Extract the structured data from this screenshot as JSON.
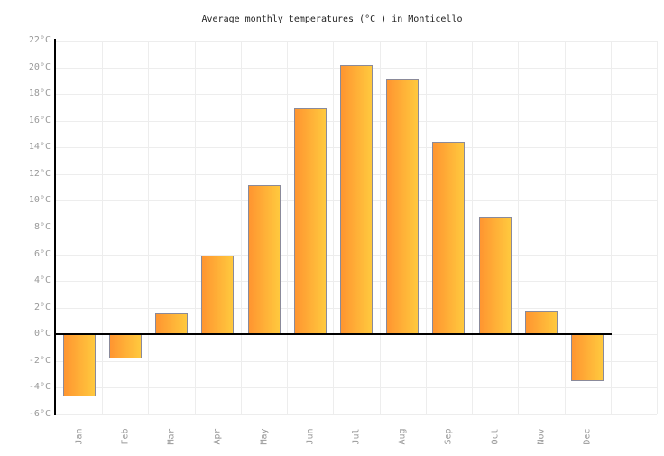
{
  "chart_data": {
    "type": "bar",
    "title": "Average monthly temperatures (°C ) in Monticello",
    "categories": [
      "Jan",
      "Feb",
      "Mar",
      "Apr",
      "May",
      "Jun",
      "Jul",
      "Aug",
      "Sep",
      "Oct",
      "Nov",
      "Dec"
    ],
    "values": [
      -4.7,
      -1.8,
      1.6,
      5.9,
      11.2,
      16.9,
      20.2,
      19.1,
      14.4,
      8.8,
      1.8,
      -3.5
    ],
    "unit": "°C",
    "xlabel": "",
    "ylabel": "",
    "ylim": [
      -6,
      22
    ],
    "ytick_step": 2,
    "ytick_labels": [
      "22°C",
      "20°C",
      "18°C",
      "16°C",
      "14°C",
      "12°C",
      "10°C",
      "8°C",
      "6°C",
      "4°C",
      "2°C",
      "0°C",
      "-2°C",
      "-4°C",
      "-6°C"
    ],
    "grid": "on",
    "legend": "none",
    "extra_right_columns": 1
  },
  "colors": {
    "background": "#ffffff",
    "bar_gradient_left": "#ff9530",
    "bar_gradient_right": "#ffc93e",
    "bar_border": "#8a8a9a",
    "gridline": "#ededed",
    "axis_line": "#000000",
    "zero_line": "#000000",
    "tick_label": "#999999",
    "title_text": "#222222"
  }
}
